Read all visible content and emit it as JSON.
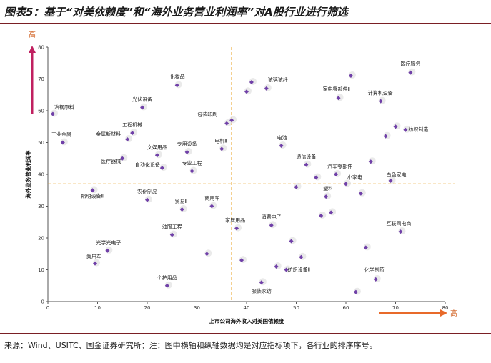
{
  "figure": {
    "title": "图表5：基于“对美依赖度”和“海外业务营业利润率”对A股行业进行筛选",
    "source": "来源：Wind、USITC、国金证券研究所；注：图中横轴和纵轴数据均是对应指标项下，各行业的排序序号。"
  },
  "chart_data": {
    "type": "scatter",
    "xlabel": "上市公司海外收入对美国依赖度",
    "ylabel": "海外业务营业利润率",
    "x_high_label": "高",
    "y_high_label": "高",
    "xlim": [
      0,
      80
    ],
    "ylim": [
      0,
      80
    ],
    "x_ticks": [
      0,
      10,
      20,
      30,
      40,
      50,
      60,
      70,
      80
    ],
    "y_ticks": [
      0,
      10,
      20,
      30,
      40,
      50,
      60,
      70,
      80
    ],
    "reference_lines": {
      "x": 37,
      "y": 37
    },
    "grid": false,
    "colors": {
      "point": "#7040a8",
      "reference": "#e8a020",
      "axis_arrow": "#e86a2a",
      "y_arrow": "#c02060",
      "title_rule": "#7a1f24"
    },
    "points": [
      {
        "x": 1,
        "y": 59,
        "label": "冶钢原料"
      },
      {
        "x": 3,
        "y": 50,
        "label": "工业金属"
      },
      {
        "x": 9,
        "y": 35,
        "label": "照明设备Ⅱ"
      },
      {
        "x": 9.5,
        "y": 12,
        "label": "乘用车"
      },
      {
        "x": 12,
        "y": 16,
        "label": "光学光电子"
      },
      {
        "x": 15,
        "y": 45,
        "label": "医疗器械"
      },
      {
        "x": 16,
        "y": 51,
        "label": "金属新材料"
      },
      {
        "x": 17,
        "y": 53,
        "label": "工程机械"
      },
      {
        "x": 19,
        "y": 61,
        "label": "光伏设备"
      },
      {
        "x": 20,
        "y": 32,
        "label": "农化制品"
      },
      {
        "x": 22,
        "y": 46,
        "label": "文娱用品"
      },
      {
        "x": 23,
        "y": 42,
        "label": "自动化设备"
      },
      {
        "x": 24,
        "y": 5,
        "label": "个护用品"
      },
      {
        "x": 25,
        "y": 21,
        "label": "油服工程"
      },
      {
        "x": 26,
        "y": 68,
        "label": "化妆品"
      },
      {
        "x": 27,
        "y": 29,
        "label": "贸易Ⅱ"
      },
      {
        "x": 28,
        "y": 47,
        "label": "专用设备"
      },
      {
        "x": 29,
        "y": 41,
        "label": "专业工程"
      },
      {
        "x": 32,
        "y": 15,
        "label": ""
      },
      {
        "x": 33,
        "y": 30,
        "label": "商用车"
      },
      {
        "x": 35,
        "y": 48,
        "label": "电机Ⅱ"
      },
      {
        "x": 36,
        "y": 56,
        "label": ""
      },
      {
        "x": 37,
        "y": 57,
        "label": "包装印刷"
      },
      {
        "x": 38,
        "y": 23,
        "label": "家居用品"
      },
      {
        "x": 39,
        "y": 13,
        "label": ""
      },
      {
        "x": 40,
        "y": 66,
        "label": ""
      },
      {
        "x": 41,
        "y": 69,
        "label": ""
      },
      {
        "x": 43,
        "y": 6,
        "label": "服装家纺"
      },
      {
        "x": 44,
        "y": 67,
        "label": "玻璃玻纤"
      },
      {
        "x": 45,
        "y": 24,
        "label": "消费电子"
      },
      {
        "x": 46,
        "y": 11,
        "label": ""
      },
      {
        "x": 47,
        "y": 49,
        "label": "电池"
      },
      {
        "x": 48,
        "y": 10,
        "label": "纺织设备Ⅱ"
      },
      {
        "x": 49,
        "y": 19,
        "label": ""
      },
      {
        "x": 50,
        "y": 36,
        "label": ""
      },
      {
        "x": 51,
        "y": 14,
        "label": ""
      },
      {
        "x": 52,
        "y": 43,
        "label": "通信设备"
      },
      {
        "x": 54,
        "y": 39,
        "label": ""
      },
      {
        "x": 55,
        "y": 27,
        "label": ""
      },
      {
        "x": 56,
        "y": 33,
        "label": "塑料"
      },
      {
        "x": 57,
        "y": 28,
        "label": ""
      },
      {
        "x": 58,
        "y": 40,
        "label": "汽车零部件"
      },
      {
        "x": 58.5,
        "y": 64,
        "label": "家电零部件Ⅱ"
      },
      {
        "x": 60,
        "y": 37,
        "label": "小家电"
      },
      {
        "x": 61,
        "y": 71,
        "label": ""
      },
      {
        "x": 62,
        "y": 3,
        "label": ""
      },
      {
        "x": 63,
        "y": 34,
        "label": ""
      },
      {
        "x": 64,
        "y": 17,
        "label": ""
      },
      {
        "x": 65,
        "y": 44,
        "label": ""
      },
      {
        "x": 66,
        "y": 7,
        "label": "化学制药"
      },
      {
        "x": 67,
        "y": 63,
        "label": "计算机设备"
      },
      {
        "x": 68,
        "y": 52,
        "label": ""
      },
      {
        "x": 69,
        "y": 38,
        "label": "白色家电"
      },
      {
        "x": 70,
        "y": 55,
        "label": ""
      },
      {
        "x": 71,
        "y": 22,
        "label": "互联网电商"
      },
      {
        "x": 72,
        "y": 54,
        "label": "纺织制造"
      },
      {
        "x": 73,
        "y": 72,
        "label": "医疗服务"
      }
    ]
  }
}
